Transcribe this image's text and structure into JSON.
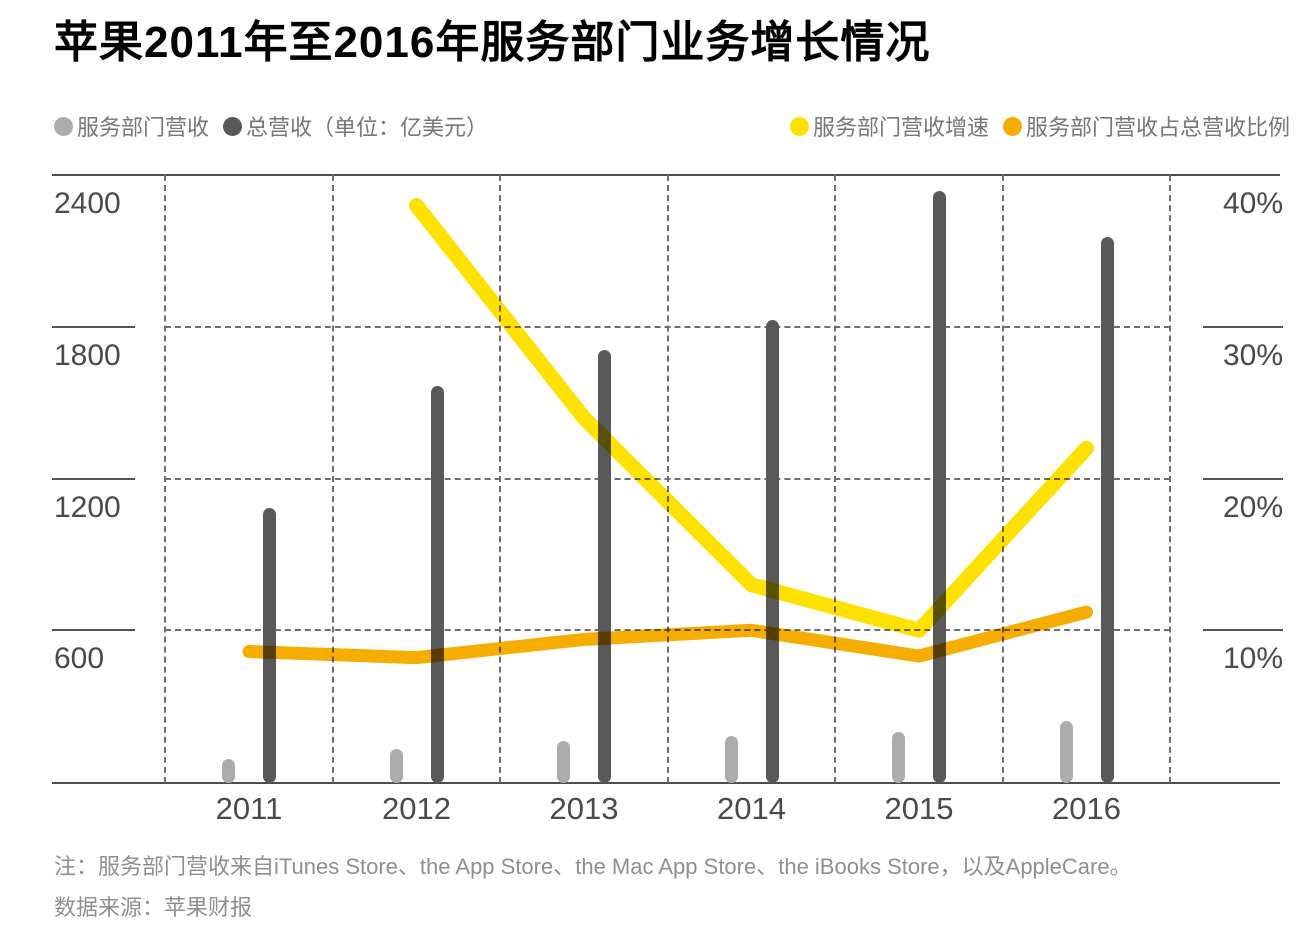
{
  "title": "苹果2011年至2016年服务部门业务增长情况",
  "legend": {
    "left": [
      {
        "label": "服务部门营收",
        "color": "#ACACAC"
      },
      {
        "label": "总营收（单位：亿美元）",
        "color": "#595959"
      }
    ],
    "right": [
      {
        "label": "服务部门营收增速",
        "color": "#FFE100"
      },
      {
        "label": "服务部门营收占总营收比例",
        "color": "#F5AD00"
      }
    ]
  },
  "chart_data": {
    "type": "combo-bar-line",
    "categories": [
      "2011",
      "2012",
      "2013",
      "2014",
      "2015",
      "2016"
    ],
    "series": [
      {
        "name": "服务部门营收",
        "type": "bar",
        "axis": "left",
        "color": "#ACACAC",
        "values": [
          90,
          129,
          161,
          181,
          199,
          243
        ]
      },
      {
        "name": "总营收",
        "type": "bar",
        "axis": "left",
        "color": "#595959",
        "values": [
          1082,
          1565,
          1709,
          1828,
          2337,
          2156
        ]
      },
      {
        "name": "服务部门营收增速",
        "type": "line",
        "axis": "right",
        "color": "#FFE100",
        "width": 15,
        "values": [
          null,
          38,
          24,
          13,
          10,
          22
        ]
      },
      {
        "name": "服务部门营收占总营收比例",
        "type": "line",
        "axis": "right",
        "color": "#F5AD00",
        "width": 13,
        "values": [
          8.6,
          8.2,
          9.4,
          10.0,
          8.3,
          11.2
        ]
      }
    ],
    "left_axis": {
      "unit": "亿美元",
      "ticks": [
        "600",
        "1200",
        "1800",
        "2400"
      ],
      "range": [
        0,
        2400
      ]
    },
    "right_axis": {
      "ticks": [
        "10%",
        "20%",
        "30%",
        "40%"
      ],
      "range": [
        0,
        40
      ]
    },
    "grid": "dashed",
    "legend_position": "top"
  },
  "notes": {
    "line1": "注：服务部门营收来自iTunes Store、the App Store、the Mac App Store、the iBooks Store，以及AppleCare。",
    "line2": "数据来源：苹果财报"
  }
}
